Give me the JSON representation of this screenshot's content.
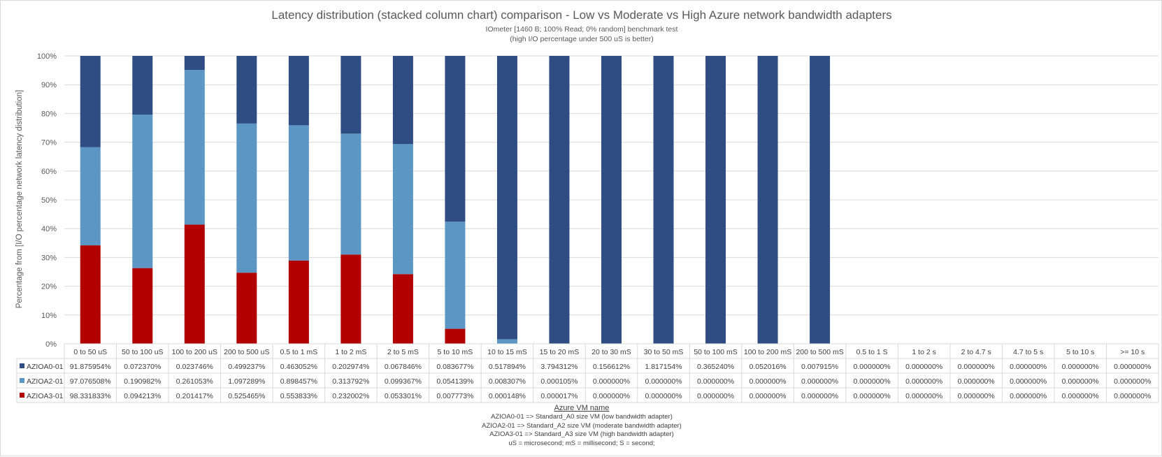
{
  "chart_data": {
    "type": "bar",
    "stacked": true,
    "title": "Latency distribution (stacked column chart) comparison - Low vs Moderate vs High Azure network bandwidth adapters",
    "subtitle_lines": [
      "IOmeter [1460 B; 100% Read; 0% random] benchmark test",
      "(high I/O percentage under 500 uS is better)"
    ],
    "xlabel": "",
    "ylabel": "Percentage from [I/O percentage network latency distribution]",
    "ylim": [
      0,
      100
    ],
    "y_ticks": [
      "0%",
      "10%",
      "20%",
      "30%",
      "40%",
      "50%",
      "60%",
      "70%",
      "80%",
      "90%",
      "100%"
    ],
    "grid": true,
    "legend": "data-table-left",
    "categories": [
      "0 to 50 uS",
      "50 to 100 uS",
      "100 to 200 uS",
      "200 to 500 uS",
      "0.5 to 1 mS",
      "1 to 2 mS",
      "2 to 5 mS",
      "5 to 10 mS",
      "10 to 15 mS",
      "15 to 20 mS",
      "20 to 30 mS",
      "30 to 50 mS",
      "50 to 100 mS",
      "100 to 200 mS",
      "200 to 500 mS",
      "0.5 to 1 S",
      "1 to 2 s",
      "2 to 4.7 s",
      "4.7 to 5 s",
      "5 to 10 s",
      ">= 10 s"
    ],
    "series": [
      {
        "name": "AZIOA0-01",
        "color": "#2f4d82",
        "labels": [
          "91.875954%",
          "0.072370%",
          "0.023746%",
          "0.499237%",
          "0.463052%",
          "0.202974%",
          "0.067846%",
          "0.083677%",
          "0.517894%",
          "3.794312%",
          "0.156612%",
          "1.817154%",
          "0.365240%",
          "0.052016%",
          "0.007915%",
          "0.000000%",
          "0.000000%",
          "0.000000%",
          "0.000000%",
          "0.000000%",
          "0.000000%"
        ]
      },
      {
        "name": "AZIOA2-01",
        "color": "#5b96c5",
        "labels": [
          "97.076508%",
          "0.190982%",
          "0.261053%",
          "1.097289%",
          "0.898457%",
          "0.313792%",
          "0.099367%",
          "0.054139%",
          "0.008307%",
          "0.000105%",
          "0.000000%",
          "0.000000%",
          "0.000000%",
          "0.000000%",
          "0.000000%",
          "0.000000%",
          "0.000000%",
          "0.000000%",
          "0.000000%",
          "0.000000%",
          "0.000000%"
        ]
      },
      {
        "name": "AZIOA3-01",
        "color": "#b20000",
        "labels": [
          "98.331833%",
          "0.094213%",
          "0.201417%",
          "0.525465%",
          "0.553833%",
          "0.232002%",
          "0.053301%",
          "0.007773%",
          "0.000148%",
          "0.000017%",
          "0.000000%",
          "0.000000%",
          "0.000000%",
          "0.000000%",
          "0.000000%",
          "0.000000%",
          "0.000000%",
          "0.000000%",
          "0.000000%",
          "0.000000%",
          "0.000000%"
        ]
      }
    ],
    "stack_percent_estimates": [
      {
        "AZIOA0-01": 31.7,
        "AZIOA2-01": 34.1,
        "AZIOA3-01": 34.2
      },
      {
        "AZIOA0-01": 20.4,
        "AZIOA2-01": 53.3,
        "AZIOA3-01": 26.3
      },
      {
        "AZIOA0-01": 4.9,
        "AZIOA2-01": 53.7,
        "AZIOA3-01": 41.4
      },
      {
        "AZIOA0-01": 23.5,
        "AZIOA2-01": 51.8,
        "AZIOA3-01": 24.7
      },
      {
        "AZIOA0-01": 24.1,
        "AZIOA2-01": 47.0,
        "AZIOA3-01": 28.9
      },
      {
        "AZIOA0-01": 27.0,
        "AZIOA2-01": 42.0,
        "AZIOA3-01": 31.0
      },
      {
        "AZIOA0-01": 30.6,
        "AZIOA2-01": 45.2,
        "AZIOA3-01": 24.2
      },
      {
        "AZIOA0-01": 57.6,
        "AZIOA2-01": 37.2,
        "AZIOA3-01": 5.2
      },
      {
        "AZIOA0-01": 98.4,
        "AZIOA2-01": 1.6,
        "AZIOA3-01": 0.0
      },
      {
        "AZIOA0-01": 100,
        "AZIOA2-01": 0,
        "AZIOA3-01": 0
      },
      {
        "AZIOA0-01": 100,
        "AZIOA2-01": 0,
        "AZIOA3-01": 0
      },
      {
        "AZIOA0-01": 100,
        "AZIOA2-01": 0,
        "AZIOA3-01": 0
      },
      {
        "AZIOA0-01": 100,
        "AZIOA2-01": 0,
        "AZIOA3-01": 0
      },
      {
        "AZIOA0-01": 100,
        "AZIOA2-01": 0,
        "AZIOA3-01": 0
      },
      {
        "AZIOA0-01": 100,
        "AZIOA2-01": 0,
        "AZIOA3-01": 0
      },
      {
        "AZIOA0-01": 0,
        "AZIOA2-01": 0,
        "AZIOA3-01": 0
      },
      {
        "AZIOA0-01": 0,
        "AZIOA2-01": 0,
        "AZIOA3-01": 0
      },
      {
        "AZIOA0-01": 0,
        "AZIOA2-01": 0,
        "AZIOA3-01": 0
      },
      {
        "AZIOA0-01": 0,
        "AZIOA2-01": 0,
        "AZIOA3-01": 0
      },
      {
        "AZIOA0-01": 0,
        "AZIOA2-01": 0,
        "AZIOA3-01": 0
      },
      {
        "AZIOA0-01": 0,
        "AZIOA2-01": 0,
        "AZIOA3-01": 0
      }
    ],
    "stack_order_bottom_to_top": [
      "AZIOA3-01",
      "AZIOA2-01",
      "AZIOA0-01"
    ]
  },
  "notes": {
    "heading": "Azure VM name",
    "lines": [
      "AZIOA0-01 => Standard_A0 size VM (low bandwidth adapter)",
      "AZIOA2-01 => Standard_A2 size VM (moderate bandwidth adapter)",
      "AZIOA3-01 => Standard_A3 size VM (high bandwidth adapter)",
      "uS = microsecond; mS = millisecond; S = second;"
    ]
  }
}
